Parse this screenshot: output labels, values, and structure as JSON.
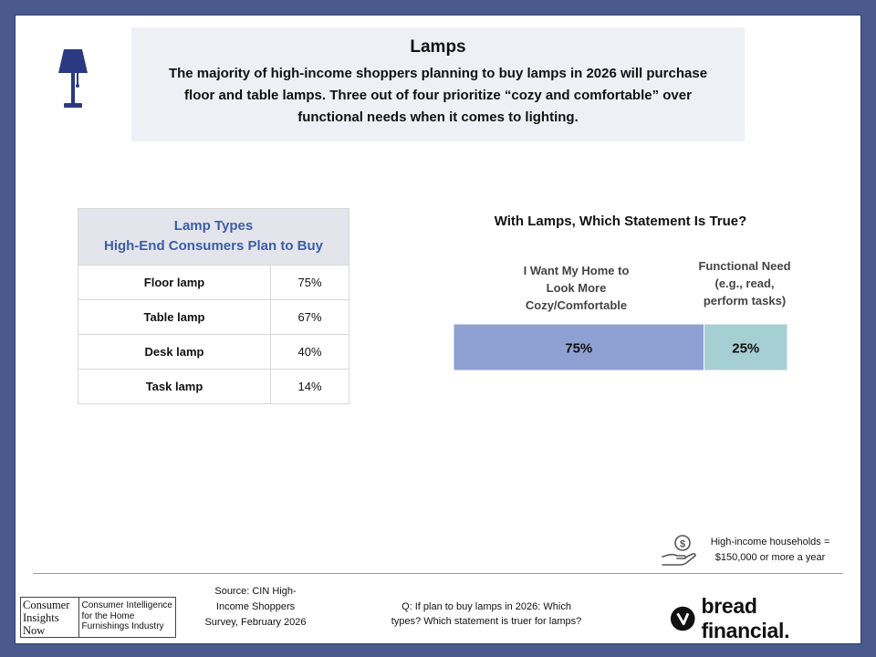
{
  "header": {
    "title": "Lamps",
    "subtitle": "The majority of high-income shoppers planning to buy lamps in 2026 will purchase floor and table lamps. Three out of four prioritize “cozy and comfortable” over functional needs when it comes to lighting."
  },
  "table": {
    "title_line1": "Lamp Types",
    "title_line2": "High-End Consumers Plan to Buy",
    "rows": [
      {
        "label": "Floor lamp",
        "value": "75%"
      },
      {
        "label": "Table lamp",
        "value": "67%"
      },
      {
        "label": "Desk lamp",
        "value": "40%"
      },
      {
        "label": "Task lamp",
        "value": "14%"
      }
    ]
  },
  "chart_data": {
    "type": "bar",
    "title": "With Lamps, Which Statement Is True?",
    "stacked": true,
    "orientation": "horizontal",
    "series": [
      {
        "name": "I Want My Home to Look More Cozy/Comfortable",
        "value": 75,
        "label": "75%",
        "color": "#8fa0d2"
      },
      {
        "name": "Functional Need (e.g., read, perform tasks)",
        "value": 25,
        "label": "25%",
        "color": "#a6cfd3"
      }
    ],
    "column_labels": [
      [
        "I Want My Home to",
        "Look More",
        "Cozy/Comfortable"
      ],
      [
        "Functional Need",
        "(e.g., read,",
        "perform tasks)"
      ]
    ],
    "xlim": [
      0,
      100
    ]
  },
  "note": {
    "line1": "High-income households =",
    "line2": "$150,000 or more a year"
  },
  "footer": {
    "cin_logo_left": "Consumer\nInsights\nNow",
    "cin_logo_right": "Consumer Intelligence\nfor the Home\nFurnishings Industry",
    "source_line1": "Source: CIN High-",
    "source_line2": "Income Shoppers",
    "source_line3": "Survey, February 2026",
    "question_line1": "Q: If plan to buy lamps in 2026: Which",
    "question_line2": "types? Which statement is truer for lamps?",
    "brand": "bread financial."
  },
  "icons": {
    "lamp": "floor-lamp-icon",
    "money": "money-hand-icon",
    "brand": "bread-financial-logo"
  },
  "colors": {
    "frame": "#4a5a8c",
    "table_header_text": "#3a5ea8",
    "lamp_icon": "#2b3a80"
  }
}
